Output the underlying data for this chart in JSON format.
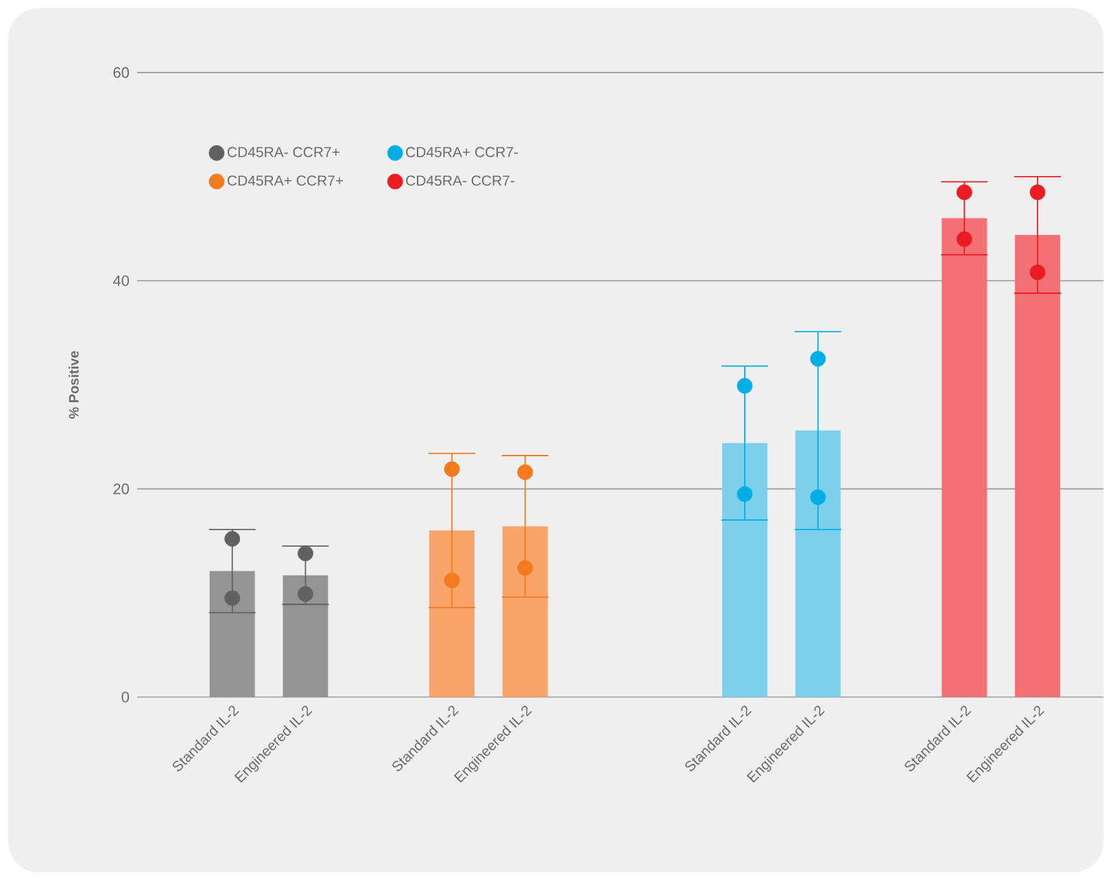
{
  "chart_data": {
    "type": "bar",
    "ylabel": "% Positive",
    "categories": [
      "Standard IL-2",
      "Engineered IL-2",
      null,
      "Standard IL-2",
      "Engineered IL-2",
      null,
      null,
      "Standard IL-2",
      "Engineered IL-2",
      null,
      "Standard IL-2",
      "Engineered IL-2"
    ],
    "values": [
      12.1,
      11.7,
      null,
      16.0,
      16.4,
      null,
      null,
      24.4,
      25.6,
      null,
      46.0,
      44.4
    ],
    "colors": [
      "#949494",
      "#949494",
      "#efefef",
      "#f9a469",
      "#f9a469",
      "#efefef",
      "#efefef",
      "#7dd0ec",
      "#7dd0ec",
      "#efefef",
      "#f37075",
      "#f37075"
    ],
    "errors": [
      4.0,
      2.8,
      null,
      7.4,
      6.8,
      null,
      null,
      7.4,
      9.5,
      null,
      3.5,
      5.6
    ],
    "series": [
      {
        "type": "scatter",
        "name": "CD45RA- CCR7+",
        "color": "#616161",
        "values": [
          15.2,
          13.8,
          null,
          null,
          null,
          null,
          null,
          null,
          null,
          null,
          null,
          null
        ]
      },
      {
        "type": "scatter",
        "color": "#616161",
        "values": [
          9.5,
          9.9,
          null,
          null,
          null,
          null,
          null,
          null,
          null,
          null,
          null,
          null
        ]
      },
      {
        "type": "scatter",
        "name": "CD45RA+ CCR7+",
        "color": "#f47a20",
        "values": [
          null,
          null,
          null,
          21.9,
          21.6,
          null,
          null,
          null,
          null,
          null,
          null,
          null
        ]
      },
      {
        "type": "scatter",
        "color": "#f47a20",
        "values": [
          null,
          null,
          null,
          11.2,
          12.4,
          null,
          null,
          null,
          null,
          null,
          null,
          null
        ]
      },
      {
        "type": "scatter",
        "name": "CD45RA+ CCR7-",
        "color": "#00aee6",
        "values": [
          null,
          null,
          null,
          null,
          null,
          null,
          null,
          29.9,
          32.5,
          null,
          null,
          null
        ]
      },
      {
        "type": "scatter",
        "color": "#00aee6",
        "values": [
          null,
          null,
          null,
          null,
          null,
          null,
          null,
          19.5,
          19.2,
          null,
          null,
          null
        ]
      },
      {
        "type": "scatter",
        "name": "CD45RA- CCR7-",
        "color": "#ed1c24",
        "values": [
          null,
          null,
          null,
          null,
          null,
          null,
          null,
          null,
          null,
          null,
          48.5,
          48.5
        ]
      },
      {
        "type": "scatter",
        "color": "#ed1c24",
        "values": [
          null,
          null,
          null,
          null,
          null,
          null,
          null,
          null,
          null,
          null,
          44.0,
          40.8
        ]
      }
    ],
    "ylim": [
      0,
      60
    ],
    "yticks": [
      0,
      20,
      40,
      60
    ],
    "grid": "y",
    "legend": "top left"
  }
}
